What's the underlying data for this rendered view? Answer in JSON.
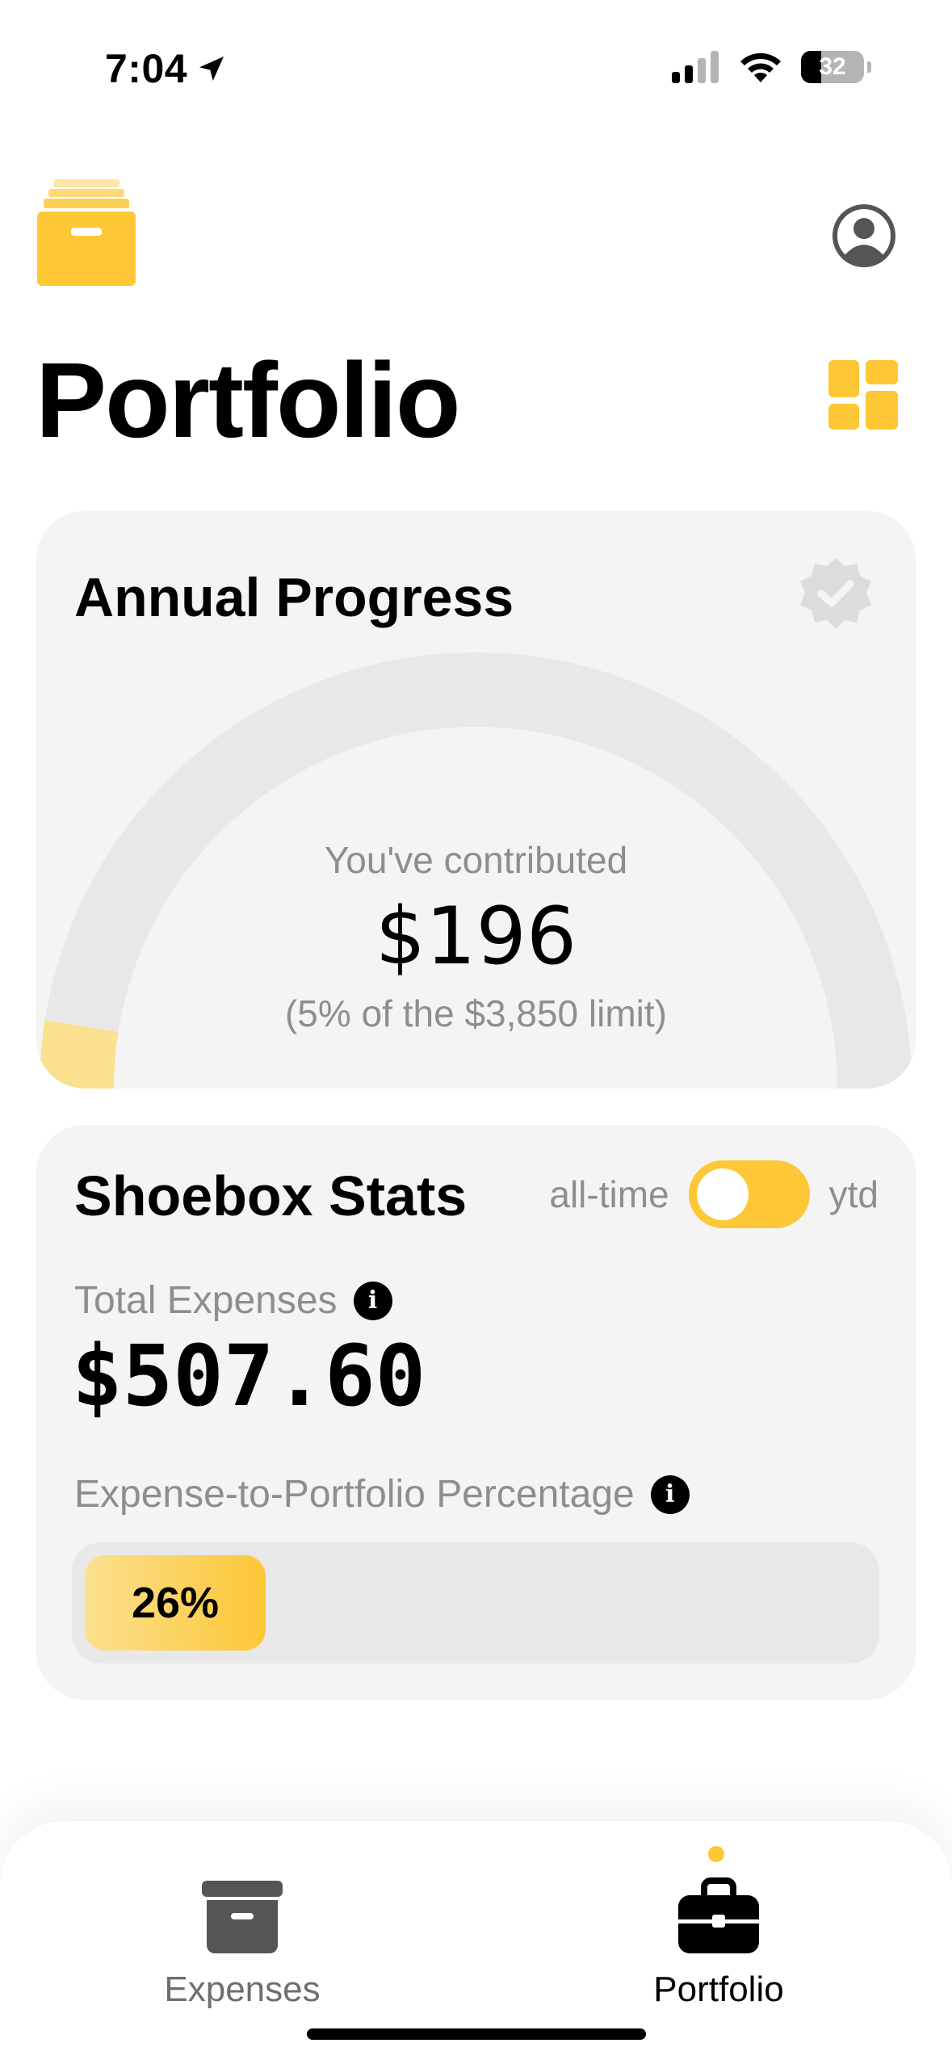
{
  "status_bar": {
    "time": "7:04",
    "battery": "32"
  },
  "header": {
    "title": "Portfolio"
  },
  "annual_progress": {
    "title": "Annual Progress",
    "caption": "You've contributed",
    "amount": "$196",
    "subtext": "(5% of the $3,850 limit)",
    "progress_fraction": 0.05
  },
  "stats": {
    "title": "Shoebox Stats",
    "toggle_left_label": "all-time",
    "toggle_right_label": "ytd",
    "total_expenses_label": "Total Expenses",
    "total_expenses_value": "$507.60",
    "ratio_label": "Expense-to-Portfolio Percentage",
    "ratio_value": "26%",
    "ratio_fraction": 0.26
  },
  "tab_bar": {
    "tabs": [
      {
        "label": "Expenses",
        "icon": "archive-box-icon",
        "active": false
      },
      {
        "label": "Portfolio",
        "icon": "briefcase-icon",
        "active": true
      }
    ]
  },
  "colors": {
    "accent": "#fdc735",
    "accent_light": "#fbe08f",
    "card_bg": "#f4f4f4",
    "muted_text": "#8e8e8e"
  }
}
